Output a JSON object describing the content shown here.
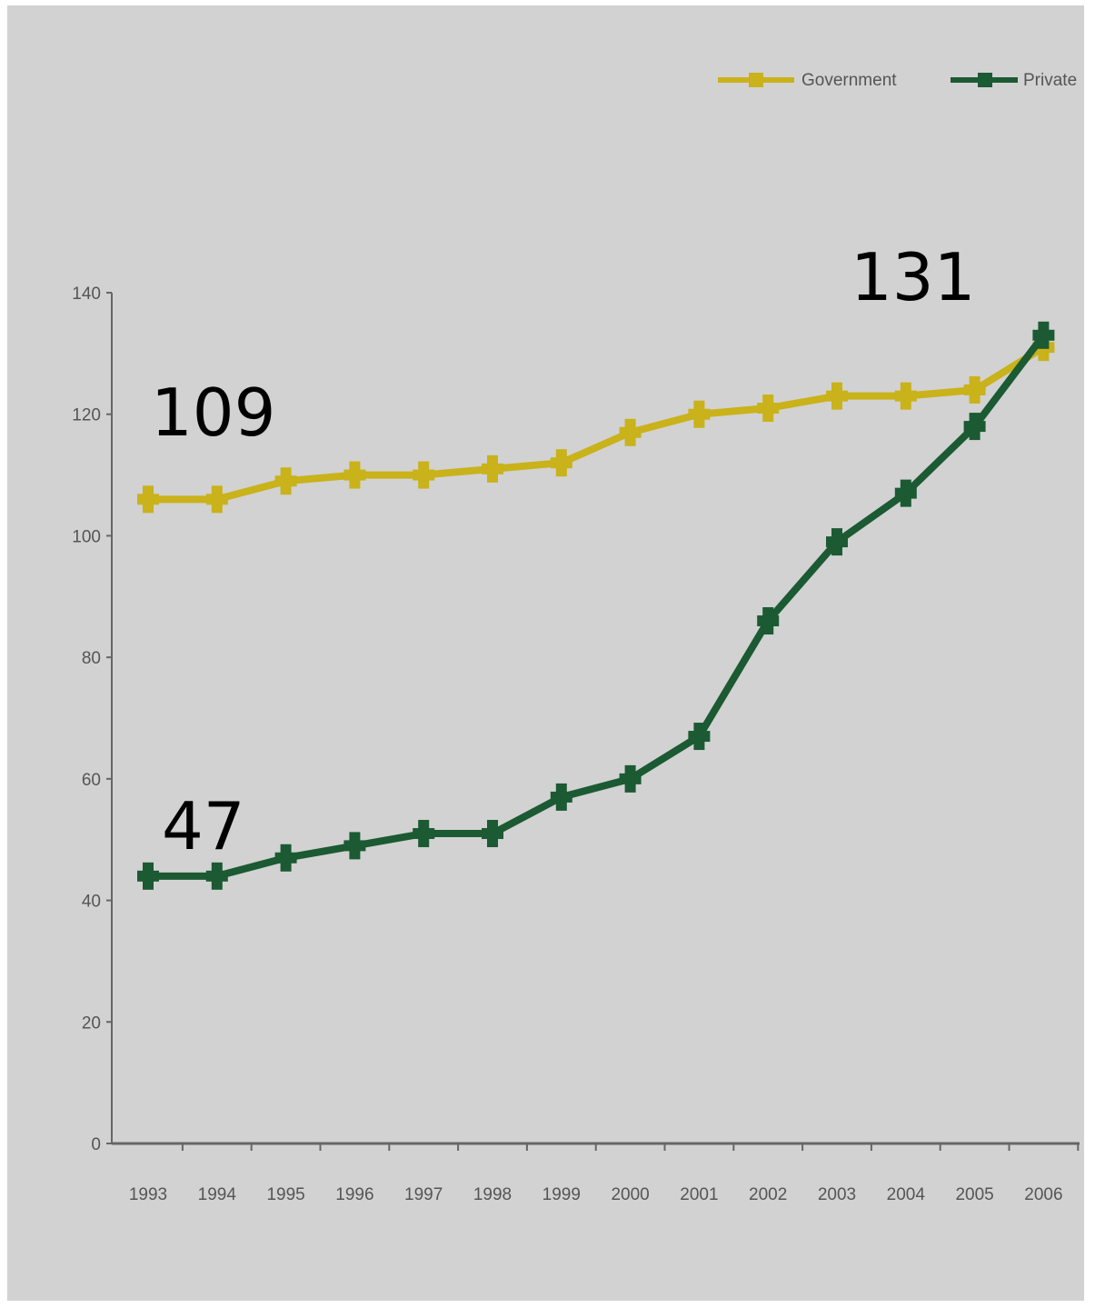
{
  "chart_data": {
    "type": "line",
    "x": [
      "1993",
      "1994",
      "1995",
      "1996",
      "1997",
      "1998",
      "1999",
      "2000",
      "2001",
      "2002",
      "2003",
      "2004",
      "2005",
      "2006"
    ],
    "series": [
      {
        "name": "Government",
        "color": "#c9b21a",
        "values": [
          106,
          106,
          109,
          110,
          110,
          111,
          112,
          117,
          120,
          121,
          123,
          123,
          124,
          131
        ]
      },
      {
        "name": "Private",
        "color": "#1b5a32",
        "values": [
          44,
          44,
          47,
          49,
          51,
          51,
          57,
          60,
          67,
          86,
          99,
          107,
          118,
          133
        ]
      }
    ],
    "y_ticks": [
      "0",
      "20",
      "40",
      "60",
      "80",
      "100",
      "120",
      "140"
    ],
    "ylim": [
      0,
      140
    ],
    "legend_position": "top-right",
    "annotations": [
      {
        "text": "109"
      },
      {
        "text": "47"
      },
      {
        "text": "131"
      }
    ]
  }
}
